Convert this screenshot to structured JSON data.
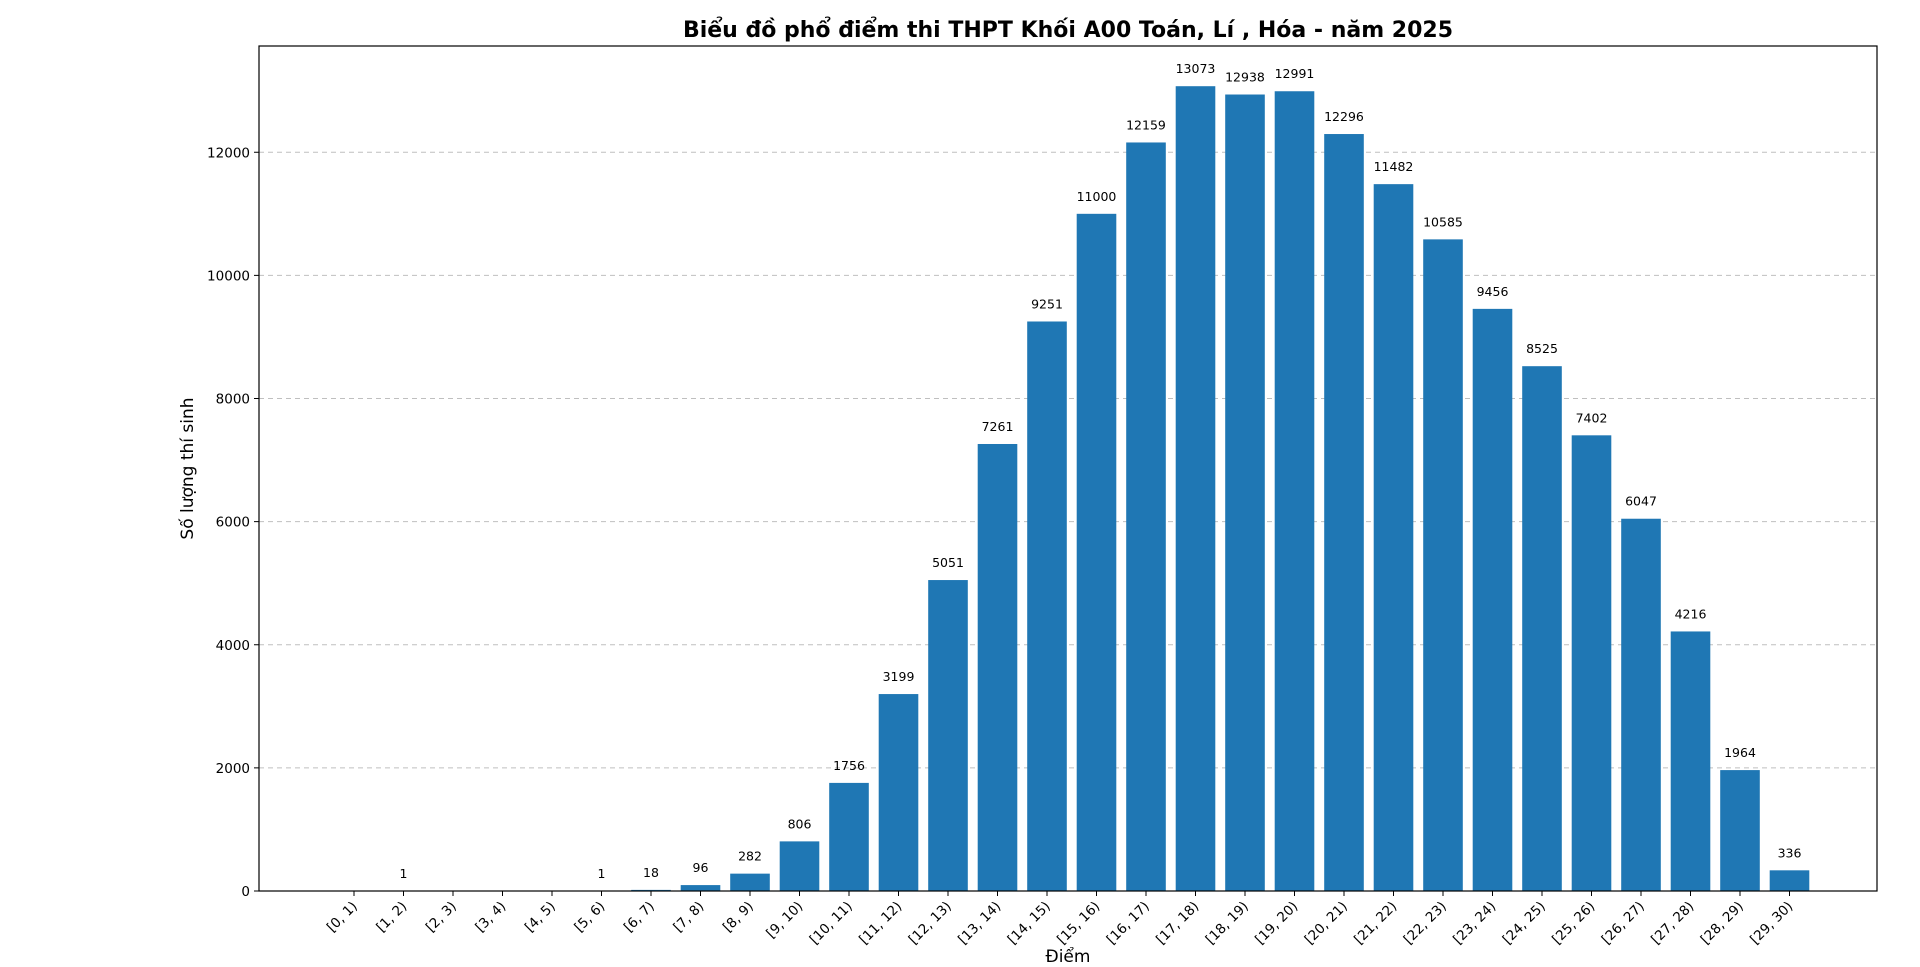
{
  "chart_data": {
    "type": "bar",
    "title": "Biểu đồ phổ điểm thi THPT Khối A00 Toán, Lí , Hóa - năm 2025",
    "xlabel": "Điểm",
    "ylabel": "Số lượng thí sinh",
    "categories": [
      "[0, 1)",
      "[1, 2)",
      "[2, 3)",
      "[3, 4)",
      "[4, 5)",
      "[5, 6)",
      "[6, 7)",
      "[7, 8)",
      "[8, 9)",
      "[9, 10)",
      "[10, 11)",
      "[11, 12)",
      "[12, 13)",
      "[13, 14)",
      "[14, 15)",
      "[15, 16)",
      "[16, 17)",
      "[17, 18)",
      "[18, 19)",
      "[19, 20)",
      "[20, 21)",
      "[21, 22)",
      "[22, 23)",
      "[23, 24)",
      "[24, 25)",
      "[25, 26)",
      "[26, 27)",
      "[27, 28)",
      "[28, 29)",
      "[29, 30)"
    ],
    "values": [
      0,
      1,
      0,
      0,
      0,
      1,
      18,
      96,
      282,
      806,
      1756,
      3199,
      5051,
      7261,
      9251,
      11000,
      12159,
      13073,
      12938,
      12991,
      12296,
      11482,
      10585,
      9456,
      8525,
      7402,
      6047,
      4216,
      1964,
      336
    ],
    "data_labels": [
      "",
      "1",
      "",
      "",
      "",
      "1",
      "18",
      "96",
      "282",
      "806",
      "1756",
      "3199",
      "5051",
      "7261",
      "9251",
      "11000",
      "12159",
      "13073",
      "12938",
      "12991",
      "12296",
      "11482",
      "10585",
      "9456",
      "8525",
      "7402",
      "6047",
      "4216",
      "1964",
      "336"
    ],
    "yticks": [
      0,
      2000,
      4000,
      6000,
      8000,
      10000,
      12000
    ],
    "ylim": [
      0,
      13726
    ],
    "grid": "y-dashed",
    "bar_color": "#1f77b4"
  }
}
